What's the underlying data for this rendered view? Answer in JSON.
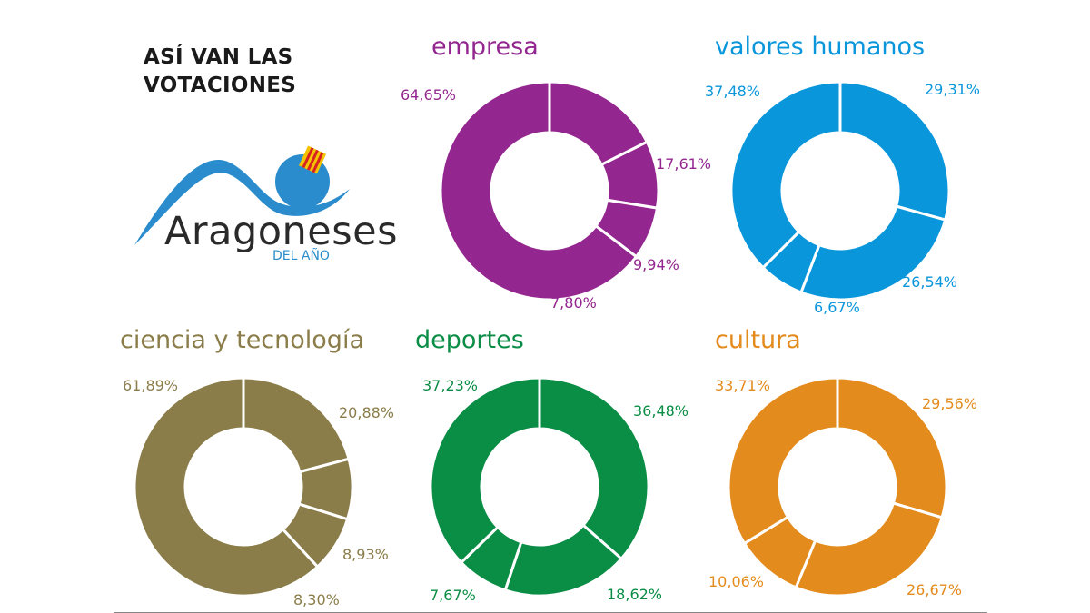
{
  "headline": {
    "line1": "ASÍ VAN LAS",
    "line2": "VOTACIONES"
  },
  "logo": {
    "name": "Aragoneses",
    "subtitle": "DEL AÑO",
    "icon": "aragon-flag-sun-icon"
  },
  "colors": {
    "headline": "#1a1a1a",
    "logo_blue": "#2a8ccc",
    "divider": "#ffffff"
  },
  "chart_data": [
    {
      "type": "pie",
      "title": "empresa",
      "color": "#93278f",
      "slices": [
        {
          "label": "17,61%",
          "value": 17.61
        },
        {
          "label": "9,94%",
          "value": 9.94
        },
        {
          "label": "7,80%",
          "value": 7.8
        },
        {
          "label": "64,65%",
          "value": 64.65
        }
      ]
    },
    {
      "type": "pie",
      "title": "valores humanos",
      "color": "#0a96db",
      "slices": [
        {
          "label": "29,31%",
          "value": 29.31
        },
        {
          "label": "26,54%",
          "value": 26.54
        },
        {
          "label": "6,67%",
          "value": 6.67
        },
        {
          "label": "37,48%",
          "value": 37.48
        }
      ]
    },
    {
      "type": "pie",
      "title": "ciencia y tecnología",
      "color": "#8b7d4a",
      "slices": [
        {
          "label": "20,88%",
          "value": 20.88
        },
        {
          "label": "8,93%",
          "value": 8.93
        },
        {
          "label": "8,30%",
          "value": 8.3
        },
        {
          "label": "61,89%",
          "value": 61.89
        }
      ]
    },
    {
      "type": "pie",
      "title": "deportes",
      "color": "#0a8d45",
      "slices": [
        {
          "label": "36,48%",
          "value": 36.48
        },
        {
          "label": "18,62%",
          "value": 18.62
        },
        {
          "label": "7,67%",
          "value": 7.67
        },
        {
          "label": "37,23%",
          "value": 37.23
        }
      ]
    },
    {
      "type": "pie",
      "title": "cultura",
      "color": "#e38b1c",
      "slices": [
        {
          "label": "29,56%",
          "value": 29.56
        },
        {
          "label": "26,67%",
          "value": 26.67
        },
        {
          "label": "10,06%",
          "value": 10.06
        },
        {
          "label": "33,71%",
          "value": 33.71
        }
      ]
    }
  ]
}
